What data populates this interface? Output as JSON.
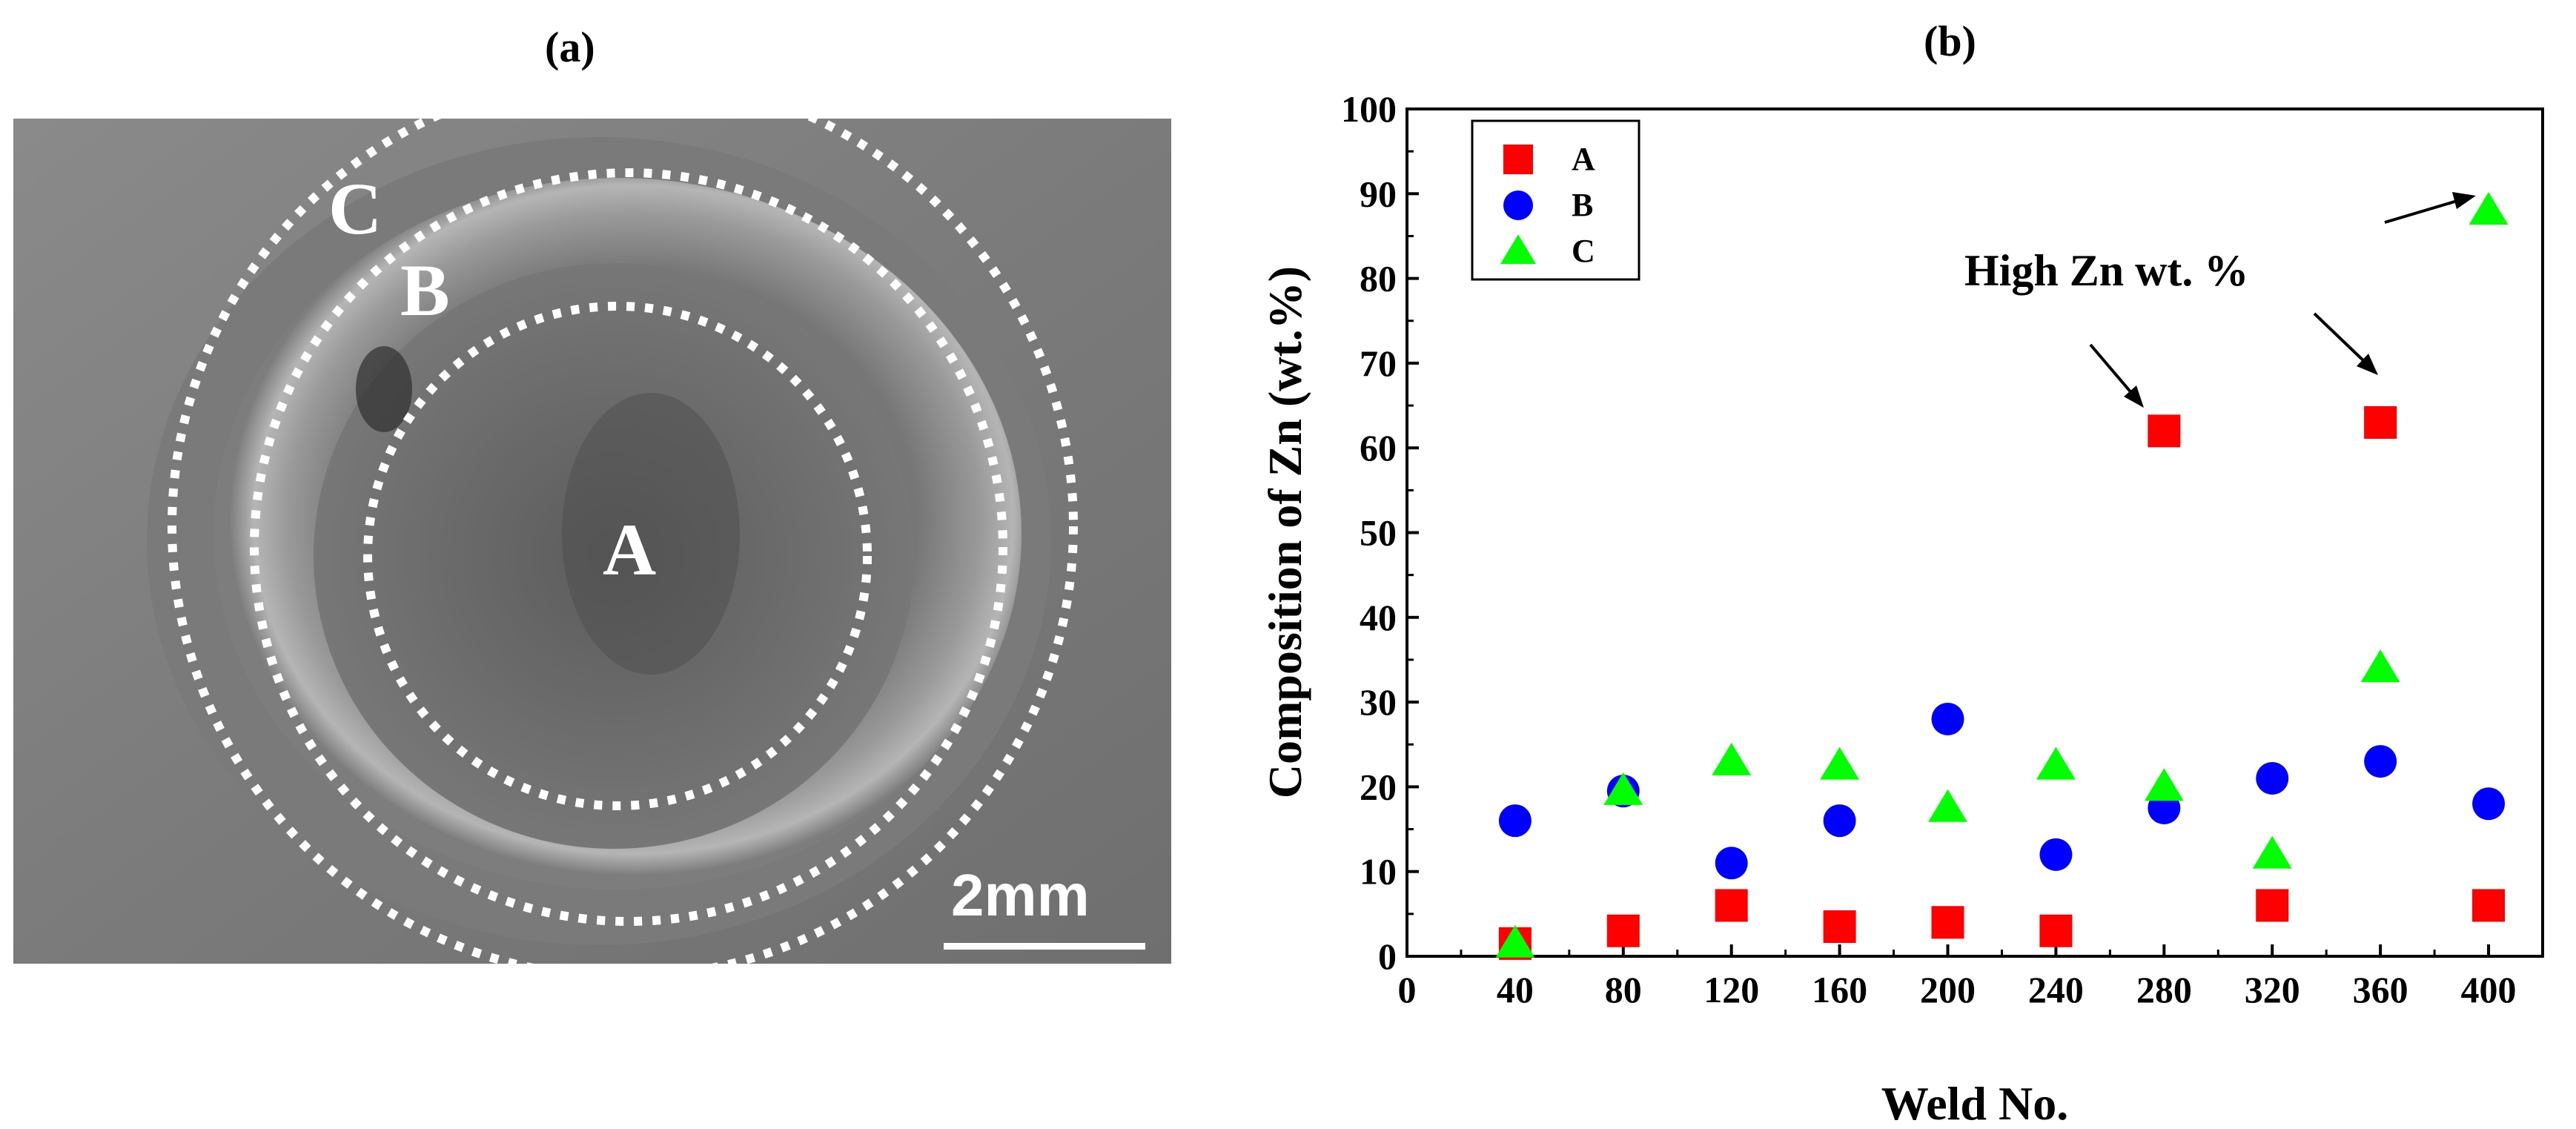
{
  "panel_a": {
    "label": "(a)",
    "regions": {
      "a": "A",
      "b": "B",
      "c": "C"
    },
    "scale_bar": "2mm"
  },
  "chart_data": {
    "type": "scatter",
    "panel_label": "(b)",
    "xlabel": "Weld No.",
    "ylabel": "Composition of Zn (wt.%)",
    "xlim": [
      0,
      420
    ],
    "ylim": [
      0,
      100
    ],
    "xticks": [
      0,
      40,
      80,
      120,
      160,
      200,
      240,
      280,
      320,
      360,
      400
    ],
    "yticks": [
      0,
      10,
      20,
      30,
      40,
      50,
      60,
      70,
      80,
      90,
      100
    ],
    "x": [
      40,
      80,
      120,
      160,
      200,
      240,
      280,
      320,
      360,
      400
    ],
    "series": [
      {
        "name": "A",
        "marker": "square",
        "color": "#ff0000",
        "values": [
          1.5,
          3,
          6,
          3.5,
          4,
          3,
          62,
          6,
          63,
          6
        ]
      },
      {
        "name": "B",
        "marker": "circle",
        "color": "#0000ff",
        "values": [
          16,
          19.5,
          11,
          16,
          28,
          12,
          17.5,
          21,
          23,
          18
        ]
      },
      {
        "name": "C",
        "marker": "triangle",
        "color": "#00ff00",
        "values": [
          1.5,
          19.5,
          23,
          22.5,
          17.5,
          22.5,
          20,
          12,
          34,
          88
        ]
      }
    ],
    "legend_position": "top-left",
    "annotation": "High Zn wt. %"
  }
}
